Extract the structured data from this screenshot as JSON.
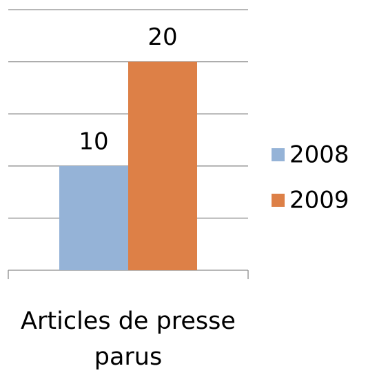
{
  "chart_data": {
    "type": "bar",
    "categories": [
      "Articles de presse parus"
    ],
    "series": [
      {
        "name": "2008",
        "color": "#95b3d7",
        "values": [
          10
        ]
      },
      {
        "name": "2009",
        "color": "#dd8047",
        "values": [
          20
        ]
      }
    ],
    "ylim": [
      0,
      25
    ],
    "yticks": [
      0,
      5,
      10,
      15,
      20,
      25
    ],
    "grid": true,
    "legend": "right"
  }
}
